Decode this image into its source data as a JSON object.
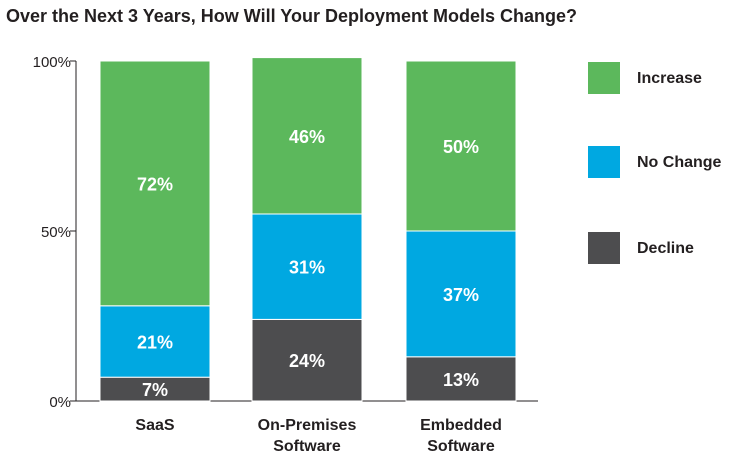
{
  "chart_data": {
    "type": "bar",
    "stacked": true,
    "title": "Over the Next 3 Years, How Will Your Deployment Models Change?",
    "categories": [
      [
        "SaaS"
      ],
      [
        "On-Premises",
        "Software"
      ],
      [
        "Embedded",
        "Software"
      ]
    ],
    "series": [
      {
        "name": "Decline",
        "color": "#4d4d4f",
        "values": [
          7,
          24,
          13
        ]
      },
      {
        "name": "No Change",
        "color": "#00a8e1",
        "values": [
          21,
          31,
          37
        ]
      },
      {
        "name": "Increase",
        "color": "#5cb85c",
        "values": [
          72,
          46,
          50
        ]
      }
    ],
    "data_labels": [
      [
        "7%",
        "24%",
        "13%"
      ],
      [
        "21%",
        "31%",
        "37%"
      ],
      [
        "72%",
        "46%",
        "50%"
      ]
    ],
    "y_ticks": [
      {
        "value": 0,
        "label": "0%"
      },
      {
        "value": 50,
        "label": "50%"
      },
      {
        "value": 100,
        "label": "100%"
      }
    ],
    "ylim": [
      0,
      100
    ],
    "legend": {
      "placement": "right",
      "order": [
        "Increase",
        "No Change",
        "Decline"
      ]
    }
  }
}
